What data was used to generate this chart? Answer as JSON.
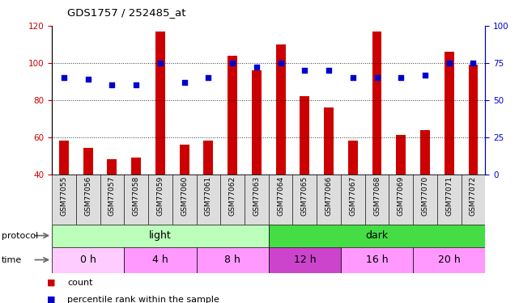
{
  "title": "GDS1757 / 252485_at",
  "samples": [
    "GSM77055",
    "GSM77056",
    "GSM77057",
    "GSM77058",
    "GSM77059",
    "GSM77060",
    "GSM77061",
    "GSM77062",
    "GSM77063",
    "GSM77064",
    "GSM77065",
    "GSM77066",
    "GSM77067",
    "GSM77068",
    "GSM77069",
    "GSM77070",
    "GSM77071",
    "GSM77072"
  ],
  "counts": [
    58,
    54,
    48,
    49,
    117,
    56,
    58,
    104,
    96,
    110,
    82,
    76,
    58,
    117,
    61,
    64,
    106,
    99
  ],
  "percentile": [
    65,
    64,
    60,
    60,
    75,
    62,
    65,
    75,
    72,
    75,
    70,
    70,
    65,
    65,
    65,
    67,
    75,
    75
  ],
  "bar_color": "#cc0000",
  "dot_color": "#0000cc",
  "ylim_left": [
    40,
    120
  ],
  "ylim_right": [
    0,
    100
  ],
  "yticks_left": [
    40,
    60,
    80,
    100,
    120
  ],
  "yticks_right": [
    0,
    25,
    50,
    75,
    100
  ],
  "grid_values": [
    60,
    80,
    100
  ],
  "protocol_groups": [
    {
      "label": "light",
      "start": 0,
      "end": 9,
      "color": "#bbffbb"
    },
    {
      "label": "dark",
      "start": 9,
      "end": 18,
      "color": "#44dd44"
    }
  ],
  "time_groups": [
    {
      "label": "0 h",
      "start": 0,
      "end": 3,
      "color": "#ffccff"
    },
    {
      "label": "4 h",
      "start": 3,
      "end": 6,
      "color": "#ff99ff"
    },
    {
      "label": "8 h",
      "start": 6,
      "end": 9,
      "color": "#ff99ff"
    },
    {
      "label": "12 h",
      "start": 9,
      "end": 12,
      "color": "#cc44cc"
    },
    {
      "label": "16 h",
      "start": 12,
      "end": 15,
      "color": "#ff99ff"
    },
    {
      "label": "20 h",
      "start": 15,
      "end": 18,
      "color": "#ff99ff"
    }
  ],
  "left_axis_color": "#cc0000",
  "right_axis_color": "#0000cc",
  "bar_bottom": 40,
  "bar_width": 0.4
}
